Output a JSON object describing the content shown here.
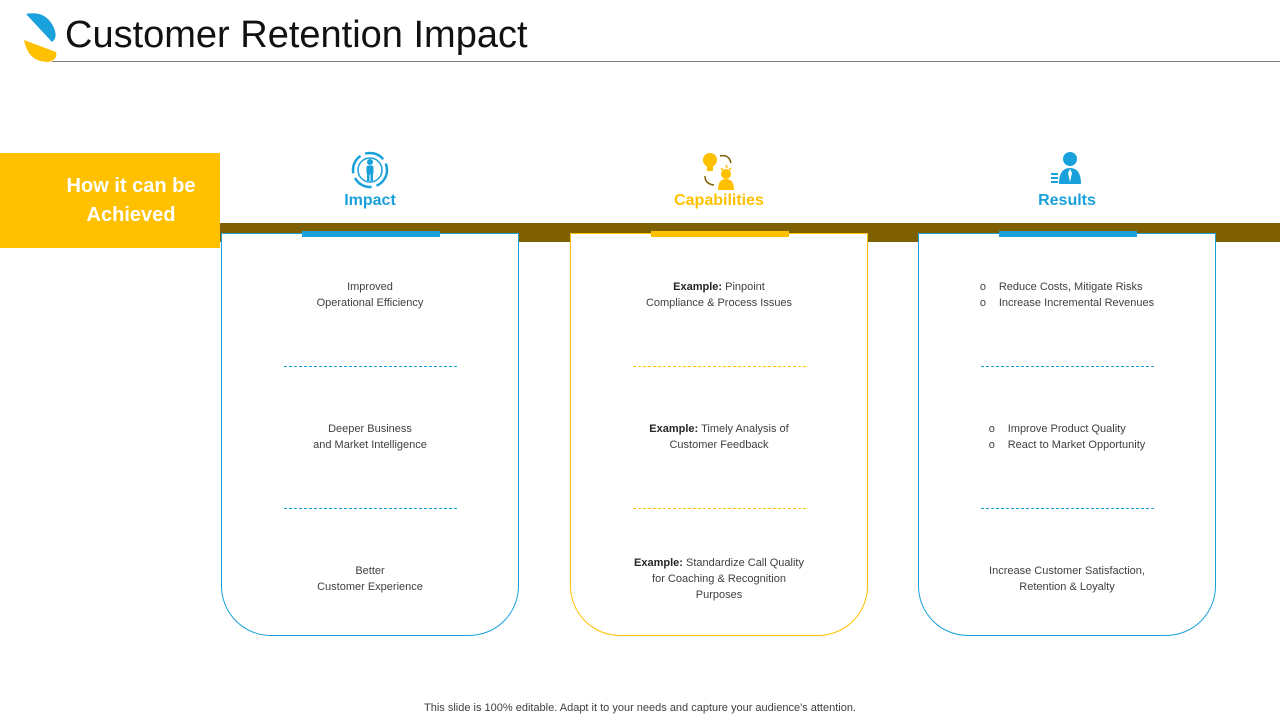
{
  "title": "Customer Retention Impact",
  "side_label": "How it can be Achieved",
  "colors": {
    "blue": "#1aa1dc",
    "yellow": "#ffc000",
    "brown": "#7f6000"
  },
  "columns": [
    {
      "heading": "Impact",
      "icon": "people-target-icon",
      "sections": [
        {
          "lines": [
            "Improved",
            "Operational Efficiency"
          ]
        },
        {
          "lines": [
            "Deeper  Business",
            "and Market Intelligence"
          ]
        },
        {
          "lines": [
            "Better",
            "Customer Experience"
          ]
        }
      ]
    },
    {
      "heading": "Capabilities",
      "icon": "idea-person-icon",
      "sections": [
        {
          "prefix": "Example:",
          "line1": "Pinpoint",
          "line2": "Compliance & Process Issues"
        },
        {
          "prefix": "Example:",
          "line1": "Timely Analysis of",
          "line2": "Customer Feedback"
        },
        {
          "prefix": "Example:",
          "line1": "Standardize Call Quality",
          "line2": "for Coaching & Recognition",
          "line3": "Purposes"
        }
      ]
    },
    {
      "heading": "Results",
      "icon": "businessman-icon",
      "sections": [
        {
          "bullets": [
            "Reduce Costs, Mitigate Risks",
            "Increase Incremental Revenues"
          ]
        },
        {
          "bullets": [
            "Improve Product Quality",
            "React to Market Opportunity"
          ]
        },
        {
          "lines": [
            "Increase Customer Satisfaction,",
            "Retention  &  Loyalty"
          ]
        }
      ]
    }
  ],
  "footer": "This slide is 100% editable. Adapt it to your needs and capture your audience's attention."
}
